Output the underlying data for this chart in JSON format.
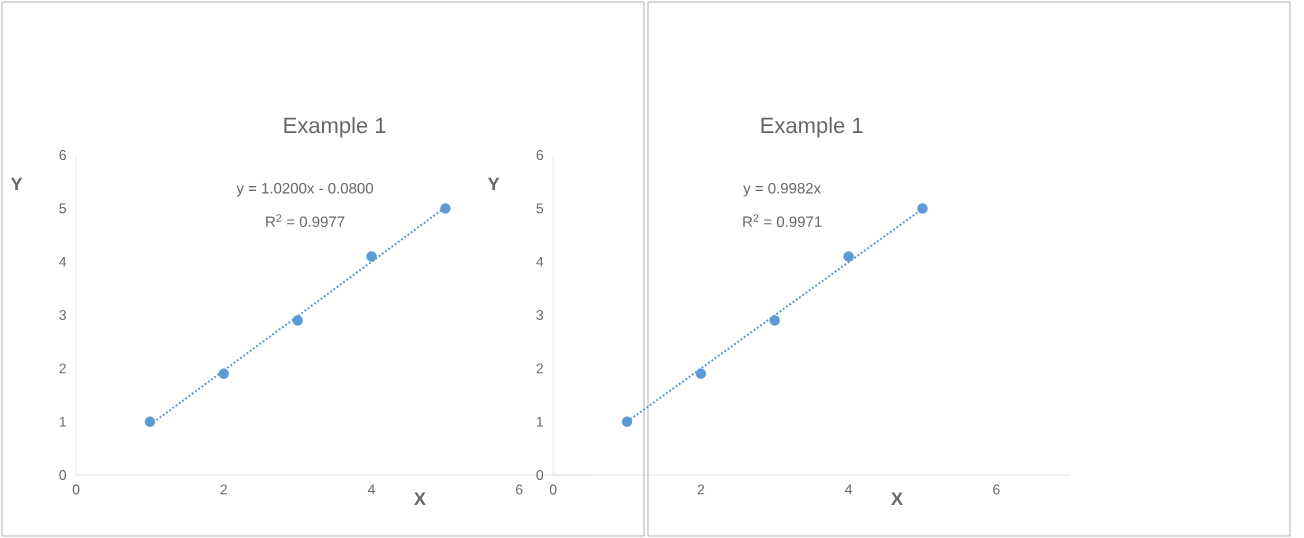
{
  "chart_data": [
    {
      "type": "scatter",
      "title": "Example 1",
      "xlabel": "X",
      "ylabel": "Y",
      "xlim": [
        0,
        7
      ],
      "ylim": [
        0,
        6
      ],
      "xticks": [
        0,
        2,
        4,
        6
      ],
      "yticks": [
        0,
        1,
        2,
        3,
        4,
        5,
        6
      ],
      "series": [
        {
          "color": "#5b9bd5",
          "marker": "circle",
          "x": [
            1,
            2,
            3,
            4,
            5
          ],
          "values": [
            1,
            1.9,
            2.9,
            4.1,
            5
          ]
        },
        {
          "type": "line",
          "color": "#5b9bd5",
          "marker": "none",
          "line_style": "dotted",
          "x": [
            1,
            5
          ],
          "values": [
            0.94,
            5.02
          ]
        }
      ],
      "annotations": [
        "y = 1.0200x - 0.0800",
        "R$^{2}$ = 0.9977"
      ]
    },
    {
      "type": "scatter",
      "title": "Example 1",
      "xlabel": "X",
      "ylabel": "Y",
      "xlim": [
        0,
        7
      ],
      "ylim": [
        0,
        6
      ],
      "xticks": [
        0,
        2,
        4,
        6
      ],
      "yticks": [
        0,
        1,
        2,
        3,
        4,
        5,
        6
      ],
      "series": [
        {
          "color": "#5b9bd5",
          "marker": "circle",
          "x": [
            1,
            2,
            3,
            4,
            5
          ],
          "values": [
            1,
            1.9,
            2.9,
            4.1,
            5
          ]
        },
        {
          "type": "line",
          "color": "#5b9bd5",
          "marker": "none",
          "line_style": "dotted",
          "x": [
            1,
            5
          ],
          "values": [
            1.0,
            4.99
          ]
        }
      ],
      "annotations": [
        "y = 0.9982x",
        "R$^{2}$ = 0.9971"
      ]
    }
  ]
}
